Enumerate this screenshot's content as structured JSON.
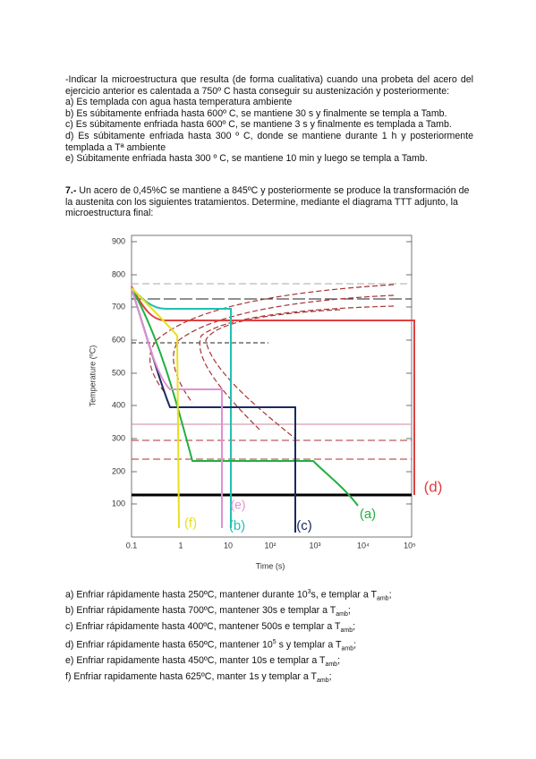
{
  "intro": {
    "text": "-Indicar la microestructura que resulta (de forma cualitativa) cuando una probeta del acero del ejercicio anterior es calentada a 750º C hasta conseguir su austenización y posteriormente:",
    "items": [
      "a) Es templada con agua hasta temperatura ambiente",
      "b) Es súbitamente enfriada hasta 600º C, se mantiene 30 s y finalmente se templa a Tamb.",
      "c) Es súbitamente enfriada hasta 600º C, se mantiene 3 s y finalmente es templada a Tamb.",
      "d) Es súbitamente enfriada hasta 300 º C, donde se mantiene durante 1 h y posteriormente templada a Tª ambiente",
      "e) Súbitamente enfriada hasta 300 º C, se mantiene 10 min y luego se templa a Tamb."
    ]
  },
  "problem": {
    "number": "7.-",
    "text": " Un acero de 0,45%C se mantiene a  845ºC y posteriormente se produce la transformación de la austenita con los siguientes tratamientos. Determine, mediante el diagrama TTT adjunto, la microestructura final:"
  },
  "diagram": {
    "ylabel": "Temperature (ºC)",
    "xlabel": "Time (s)",
    "yticks": [
      "900",
      "800",
      "700",
      "600",
      "500",
      "400",
      "300",
      "200",
      "100"
    ],
    "xticks": [
      "0.1",
      "1",
      "10",
      "10²",
      "10³",
      "10⁴",
      "10⁵"
    ],
    "curve_labels": [
      "(f)",
      "(b)",
      "(c)",
      "(a)",
      "(d)",
      "(e)"
    ]
  },
  "treatments": [
    [
      "a)  Enfriar rápidamente hasta 250ºC, mantener durante 10",
      "3",
      "s, e templar a T",
      "amb",
      ";"
    ],
    [
      "b)  Enfriar rápidamente hasta 700ºC, mantener 30s e templar a T",
      "amb",
      ";"
    ],
    [
      "c)  Enfriar rápidamente hasta 400ºC, mantener 500s e templar a T",
      "amb",
      ";"
    ],
    [
      "d)  Enfriar rápidamente hasta 650ºC, mantener 10",
      "5",
      " s y templar a T",
      "amb",
      ";"
    ],
    [
      "e)  Enfriar rapidamente hasta 450ºC, manter 10s e templar a T",
      "amb",
      ";"
    ],
    [
      "f)  Enfriar rapidamente hasta 625ºC, manter 1s y templar a T",
      "amb",
      ";"
    ]
  ]
}
